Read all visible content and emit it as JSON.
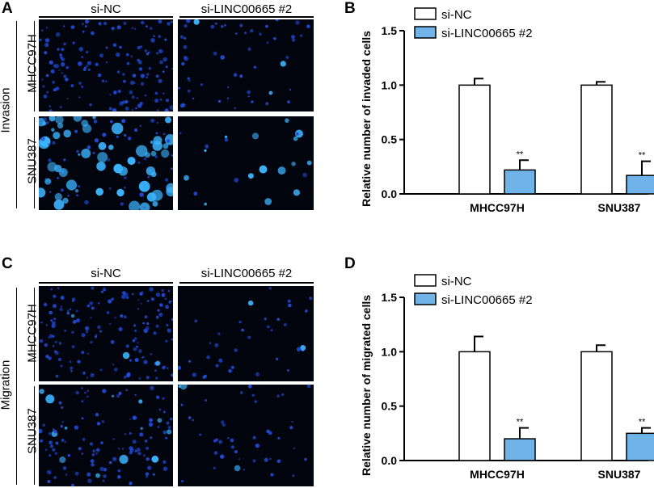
{
  "panels": {
    "A": "A",
    "B": "B",
    "C": "C",
    "D": "D"
  },
  "micrographs": {
    "top": {
      "side_label": "Invasion",
      "col_labels": [
        "si-NC",
        "si-LINC00665 #2"
      ],
      "row_labels": [
        "MHCC97H",
        "SNU387"
      ]
    },
    "bottom": {
      "side_label": "Migration",
      "col_labels": [
        "si-NC",
        "si-LINC00665 #2"
      ],
      "row_labels": [
        "MHCC97H",
        "SNU387"
      ]
    }
  },
  "colors": {
    "si_nc": "#ffffff",
    "si_linc": "#6fb3e8",
    "cell_dim": "#1f4bd6",
    "cell_bright": "#3cb4ff",
    "micro_bg": "#02040e"
  },
  "chart_data": [
    {
      "type": "bar",
      "panel": "B",
      "categories": [
        "MHCC97H",
        "SNU387"
      ],
      "series": [
        {
          "name": "si-NC",
          "values": [
            1.0,
            1.0
          ],
          "errors": [
            0.06,
            0.03
          ],
          "sig": [
            "",
            ""
          ]
        },
        {
          "name": "si-LINC00665 #2",
          "values": [
            0.22,
            0.17
          ],
          "errors": [
            0.09,
            0.13
          ],
          "sig": [
            "**",
            "**"
          ]
        }
      ],
      "xlabel": "",
      "ylabel": "Relative number of invaded cells",
      "ylim": [
        0,
        1.5
      ],
      "yticks": [
        "0.0",
        "0.5",
        "1.0",
        "1.5"
      ],
      "legend": "top-left",
      "grid": false
    },
    {
      "type": "bar",
      "panel": "D",
      "categories": [
        "MHCC97H",
        "SNU387"
      ],
      "series": [
        {
          "name": "si-NC",
          "values": [
            1.0,
            1.0
          ],
          "errors": [
            0.14,
            0.06
          ],
          "sig": [
            "",
            ""
          ]
        },
        {
          "name": "si-LINC00665 #2",
          "values": [
            0.2,
            0.25
          ],
          "errors": [
            0.1,
            0.05
          ],
          "sig": [
            "**",
            "**"
          ]
        }
      ],
      "xlabel": "",
      "ylabel": "Relative number of migrated cells",
      "ylim": [
        0,
        1.5
      ],
      "yticks": [
        "0.0",
        "0.5",
        "1.0",
        "1.5"
      ],
      "legend": "top-left",
      "grid": false
    }
  ]
}
